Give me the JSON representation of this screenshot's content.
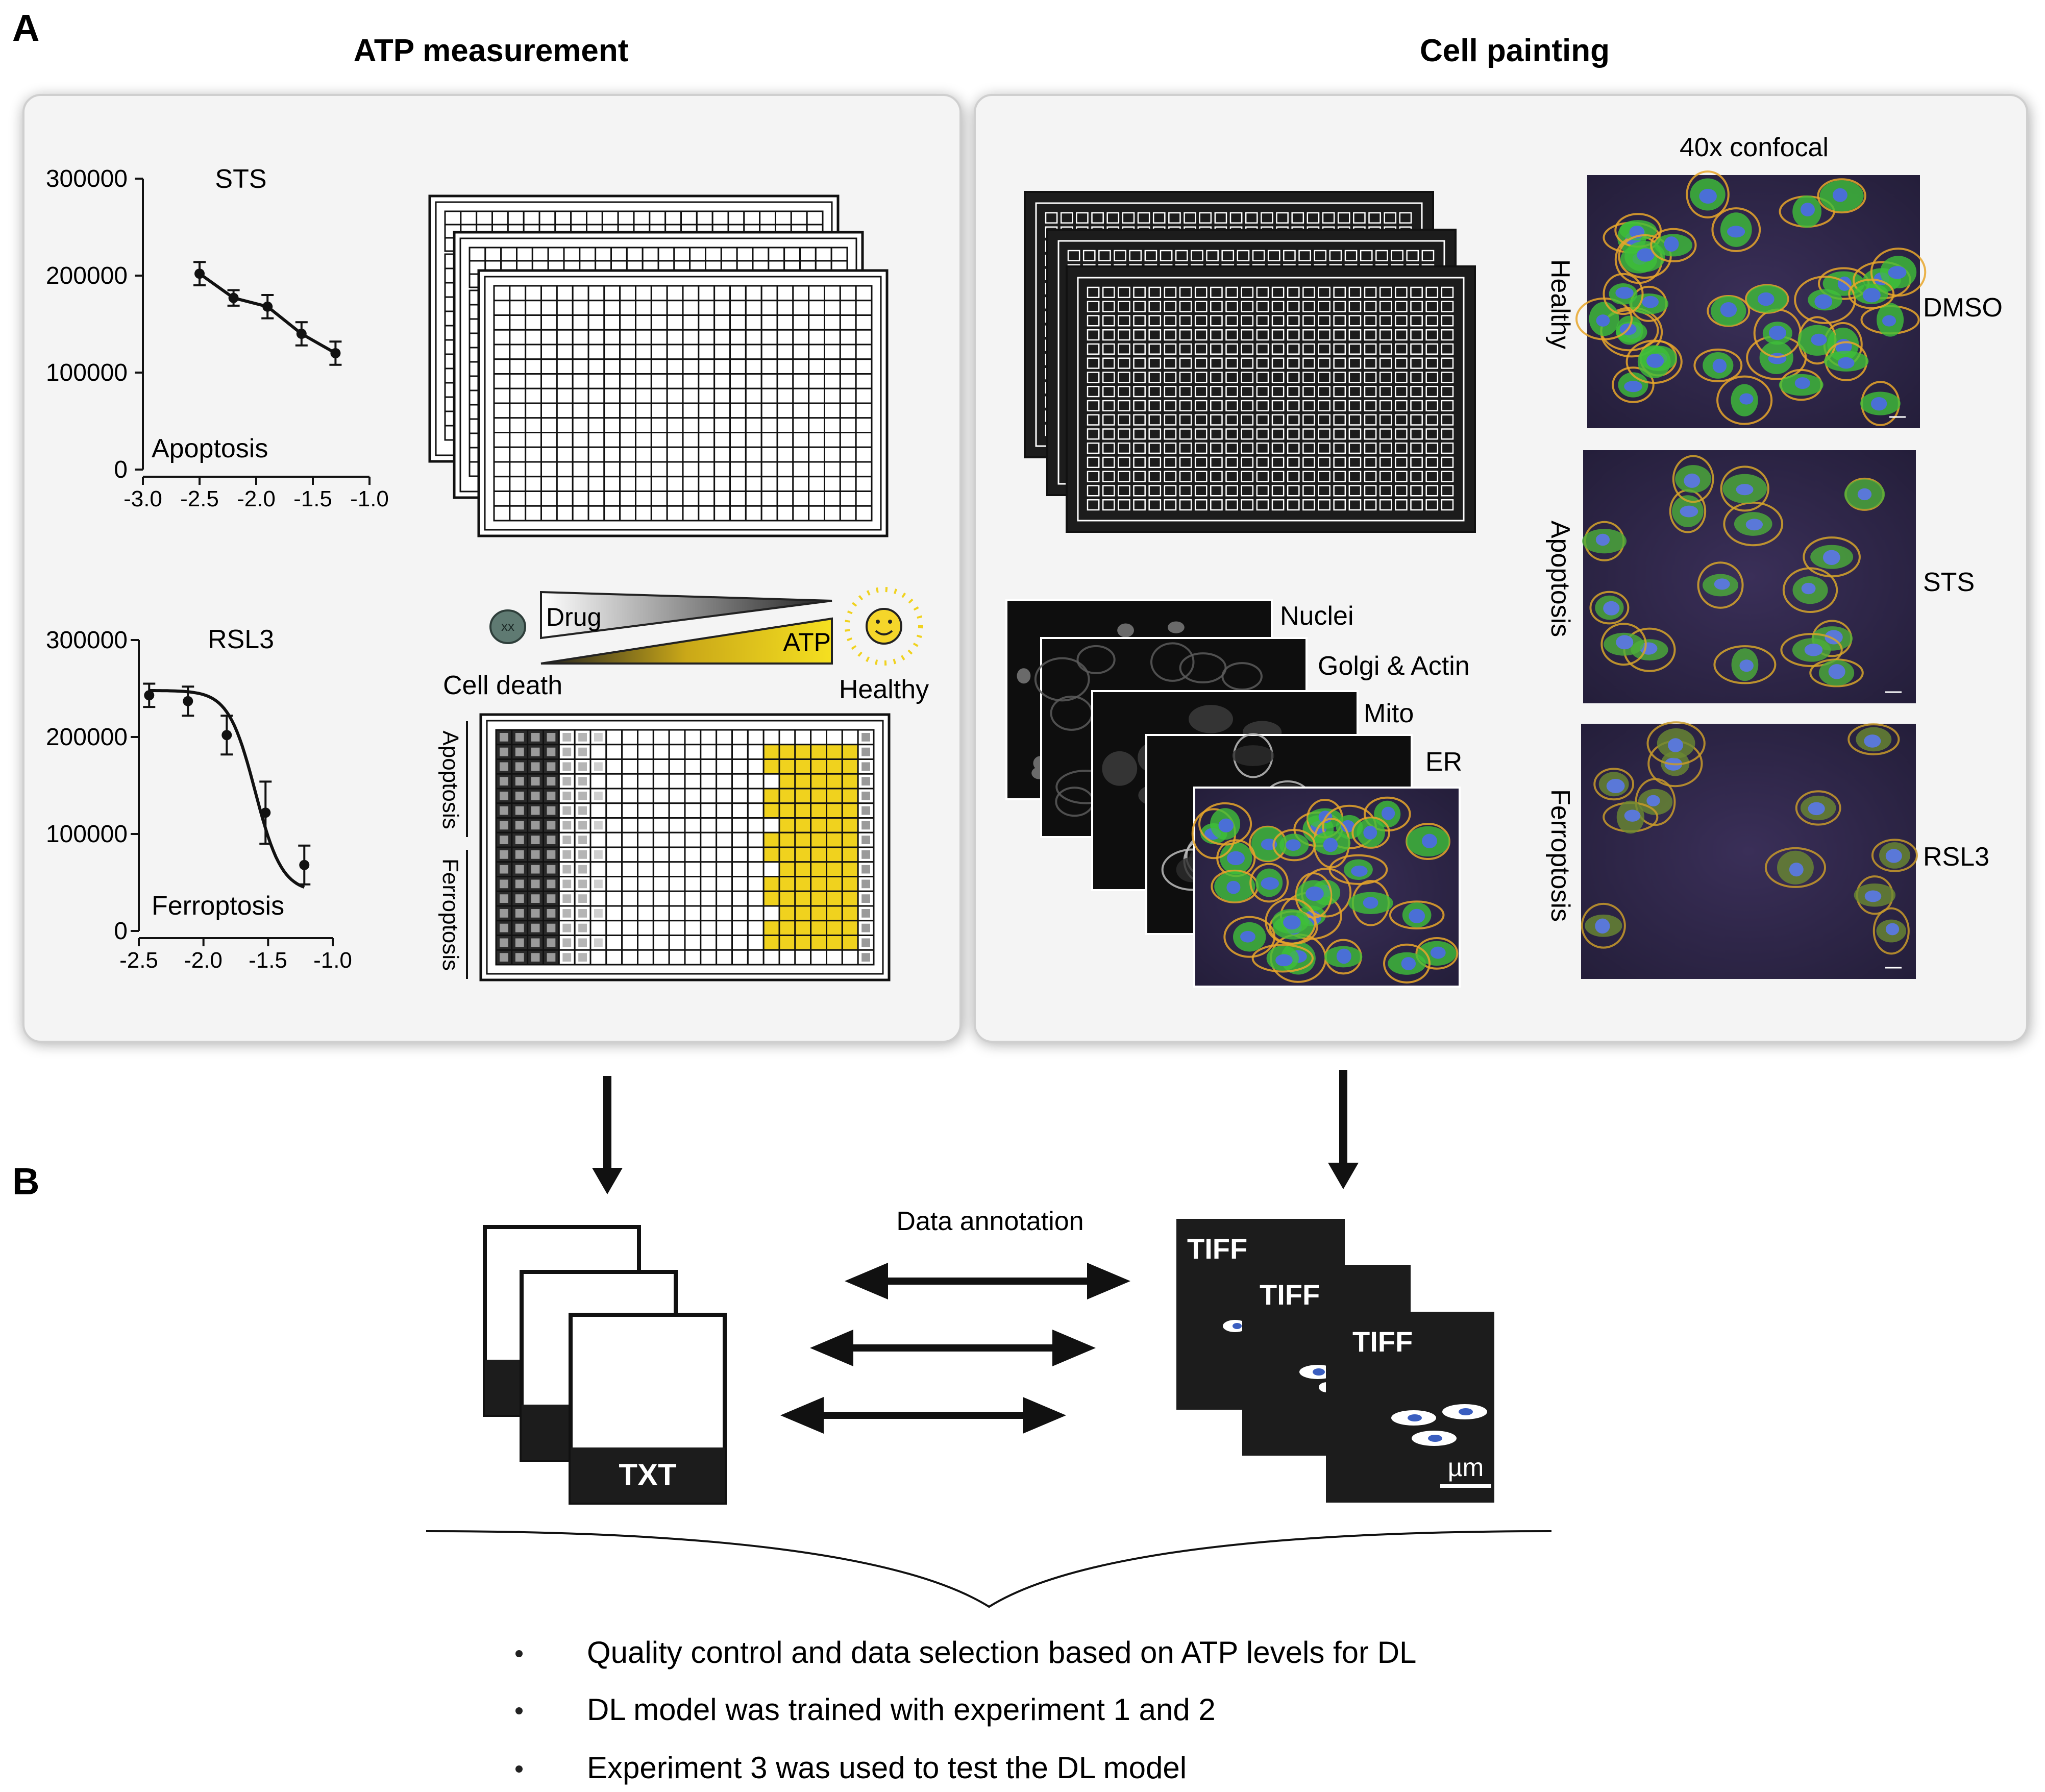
{
  "panel_a": {
    "letter": "A",
    "atp": {
      "title": "ATP measurement",
      "chart_sts": {
        "title": "STS",
        "yticks": [
          "300000",
          "200000",
          "100000",
          "0"
        ],
        "xticks": [
          "-3.0",
          "-2.5",
          "-2.0",
          "-1.5",
          "-1.0"
        ],
        "annotation": "Apoptosis"
      },
      "chart_rsl3": {
        "title": "RSL3",
        "yticks": [
          "300000",
          "200000",
          "100000",
          "0"
        ],
        "xticks": [
          "-2.5",
          "-2.0",
          "-1.5",
          "-1.0"
        ],
        "annotation": "Ferroptosis"
      },
      "gradient": {
        "drug": "Drug",
        "atp": "ATP",
        "cell_death": "Cell death",
        "healthy": "Healthy"
      },
      "plate_labels": {
        "apoptosis": "Apoptosis",
        "ferroptosis": "Ferroptosis"
      }
    },
    "cp": {
      "title": "Cell painting",
      "confocal": "40x confocal",
      "channels": [
        "Nuclei",
        "Golgi & Actin",
        "Mito",
        "ER"
      ],
      "rows": [
        {
          "state": "Healthy",
          "drug": "DMSO"
        },
        {
          "state": "Apoptosis",
          "drug": "STS"
        },
        {
          "state": "Ferroptosis",
          "drug": "RSL3"
        }
      ]
    }
  },
  "panel_b": {
    "letter": "B",
    "txt_label": "TXT",
    "tiff_label": "TIFF",
    "scale_unit": "µm",
    "annotation": "Data annotation",
    "bullets": [
      "Quality control and data selection based on ATP levels for DL",
      "DL model was trained with experiment 1 and 2",
      "Experiment 3 was used to test the DL model"
    ]
  },
  "chart_data": [
    {
      "type": "line",
      "title": "STS",
      "annotation": "Apoptosis",
      "x": [
        -2.5,
        -2.2,
        -1.9,
        -1.6,
        -1.3
      ],
      "y": [
        202000,
        177000,
        168000,
        140000,
        120000
      ],
      "yerr": [
        12000,
        8000,
        12000,
        12000,
        12000
      ],
      "xlim": [
        -3.0,
        -1.0
      ],
      "ylim": [
        0,
        300000
      ]
    },
    {
      "type": "line",
      "title": "RSL3",
      "annotation": "Ferroptosis",
      "x": [
        -2.42,
        -2.12,
        -1.82,
        -1.52,
        -1.22
      ],
      "y": [
        243000,
        237000,
        202000,
        122000,
        68000
      ],
      "yerr": [
        12000,
        15000,
        20000,
        32000,
        20000
      ],
      "xlim": [
        -2.5,
        -1.0
      ],
      "ylim": [
        0,
        300000
      ]
    }
  ],
  "colors": {
    "atp_yellow": "#f0d21e",
    "nuclei_blue": "#4a6fd6",
    "cell_green": "#3fbf3a",
    "actin_orange": "#e8a62a",
    "background_purple": "#2a2440",
    "plate_black": "#1c1c1c"
  }
}
